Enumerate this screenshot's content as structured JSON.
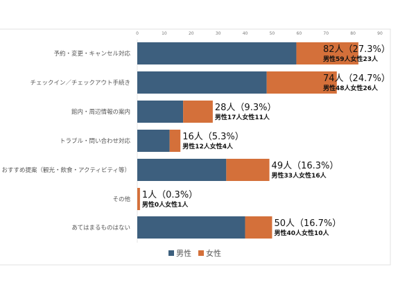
{
  "chart_data": {
    "type": "bar",
    "orientation": "horizontal",
    "stacked": true,
    "categories": [
      "予約・変更・キャンセル対応",
      "チェックイン／チェックアウト手続き",
      "館内・周辺情報の案内",
      "トラブル・問い合わせ対応",
      "おすすめ提案（観光・飲食・アクティビティ等）",
      "その他",
      "あてはまるものはない"
    ],
    "series": [
      {
        "name": "男性",
        "color": "#3d5f7e",
        "values": [
          59,
          48,
          17,
          12,
          33,
          0,
          40
        ]
      },
      {
        "name": "女性",
        "color": "#d4703a",
        "values": [
          23,
          26,
          11,
          4,
          16,
          1,
          10
        ]
      }
    ],
    "data_labels": [
      "82人（27.3%）",
      "74人（24.7%）",
      "28人（9.3%）",
      "16人（5.3%）",
      "49人（16.3%）",
      "1人（0.3%）",
      "50人（16.7%）"
    ],
    "data_sublabels": [
      "男性59人女性23人",
      "男性48人女性26人",
      "男性17人女性11人",
      "男性12人女性4人",
      "男性33人女性16人",
      "男性0人女性1人",
      "男性40人女性10人"
    ],
    "xlim": [
      0,
      90
    ],
    "xticks": [
      "0",
      "10",
      "20",
      "30",
      "40",
      "50",
      "60",
      "70",
      "80",
      "90"
    ],
    "grid": false,
    "legend_position": "bottom"
  }
}
